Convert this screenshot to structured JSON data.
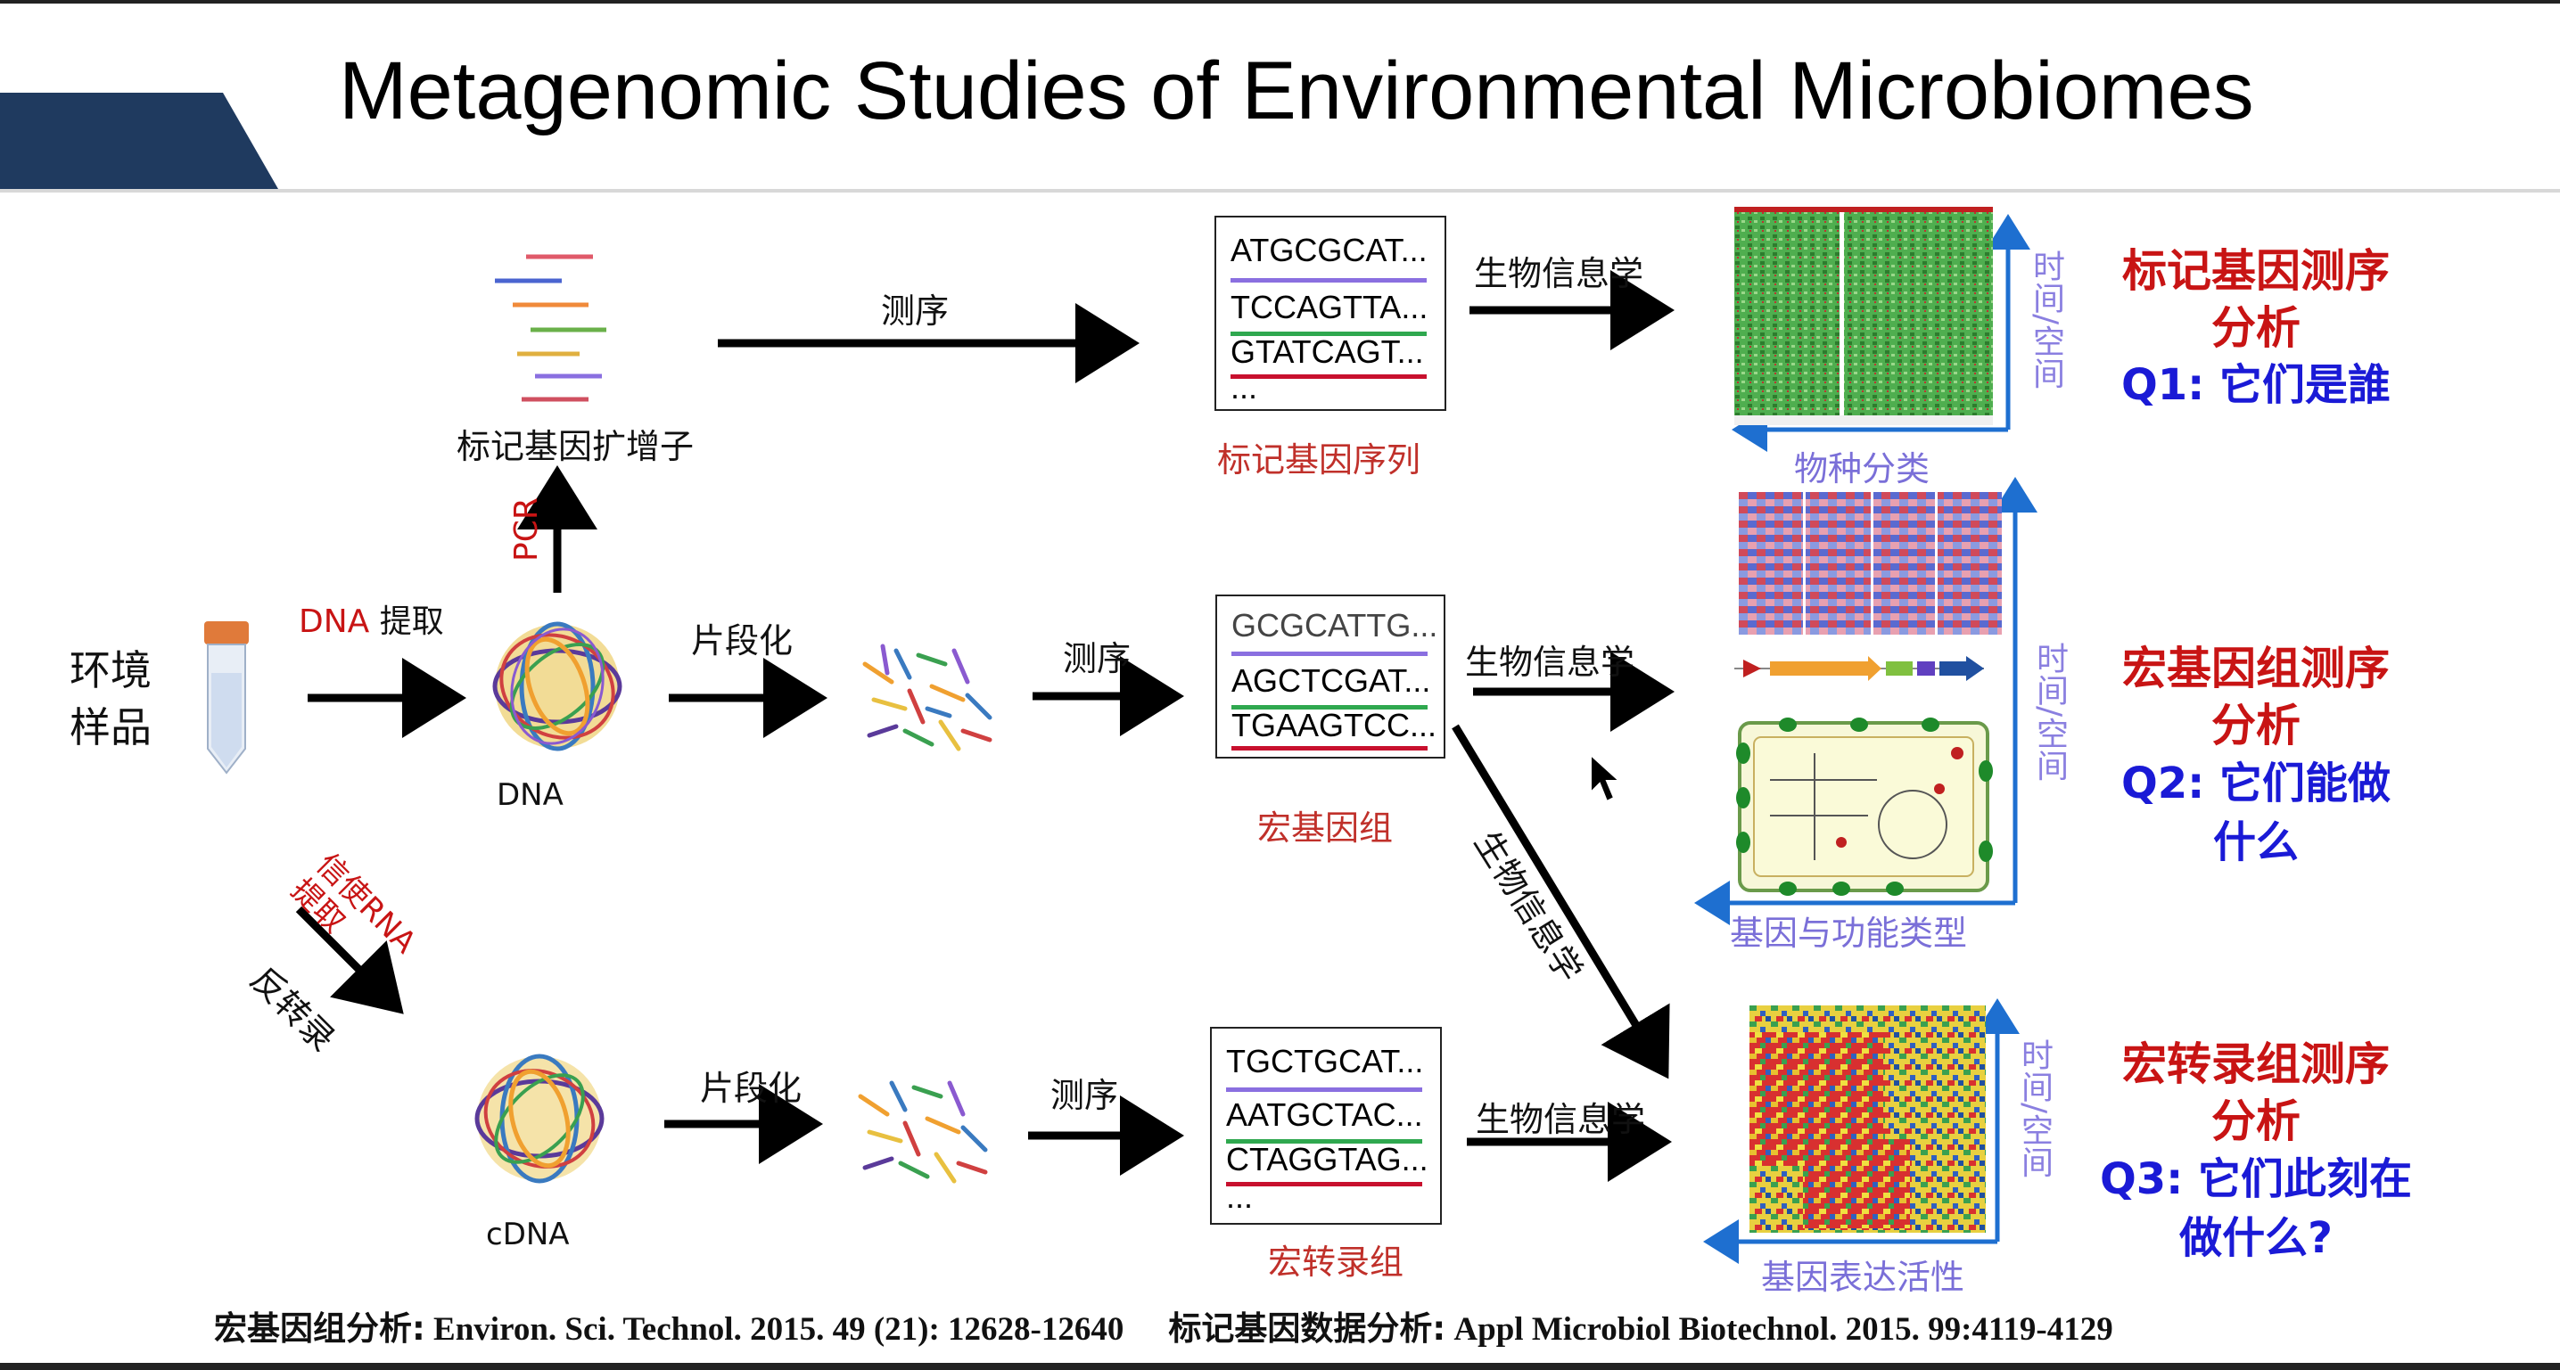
{
  "title": "Metagenomic Studies of Environmental Microbiomes",
  "sample_label": "环境\n样品",
  "steps": {
    "dna_extract_prefix": "DNA",
    "dna_extract_suffix": " 提取",
    "pcr": "PCR",
    "sequencing": "测序",
    "fragmentation": "片段化",
    "bioinformatics": "生物信息学",
    "mrna_extract": "信使RNA\n提取",
    "reverse_transcription": "反转录"
  },
  "nodes": {
    "amplicon": "标记基因扩增子",
    "dna": "DNA",
    "cdna": "cDNA"
  },
  "boxes": [
    {
      "lines": [
        "ATGCGCAT...",
        "TCCAGTTA...",
        "GTATCAGT...",
        "..."
      ],
      "caption": "标记基因序列"
    },
    {
      "lines": [
        "GCGCATTG...",
        "AGCTCGAT...",
        "TGAAGTCC..."
      ],
      "caption": "宏基因组"
    },
    {
      "lines": [
        "TGCTGCAT...",
        "AATGCTAC...",
        "CTAGGTAG...",
        "..."
      ],
      "caption": "宏转录组"
    }
  ],
  "figures": [
    {
      "x_caption": "物种分类",
      "y_caption": "时间/空间"
    },
    {
      "x_caption": "基因与功能类型",
      "y_caption": "时间/空间"
    },
    {
      "x_caption": "基因表达活性",
      "y_caption": "时间/空间"
    }
  ],
  "questions": [
    {
      "method": "标记基因测序\n分析",
      "question": "Q1: 它们是誰"
    },
    {
      "method": "宏基因组测序\n分析",
      "question": "Q2: 它们能做\n什么"
    },
    {
      "method": "宏转录组测序\n分析",
      "question": "Q3: 它们此刻在\n做什么?"
    }
  ],
  "reference": {
    "part1_zh": "宏基因组分析:",
    "part1": " Environ. Sci. Technol. 2015. 49 (21): 12628-12640",
    "part2_zh": "标记基因数据分析:",
    "part2": " Appl Microbiol Biotechnol. 2015. 99:4119-4129"
  },
  "colors": {
    "header_band": "#1f3a5f",
    "line_purple": "#8a6fe0",
    "line_green": "#2fa84f",
    "line_red": "#c8102e",
    "arrow_blue": "#1e6fd0"
  }
}
